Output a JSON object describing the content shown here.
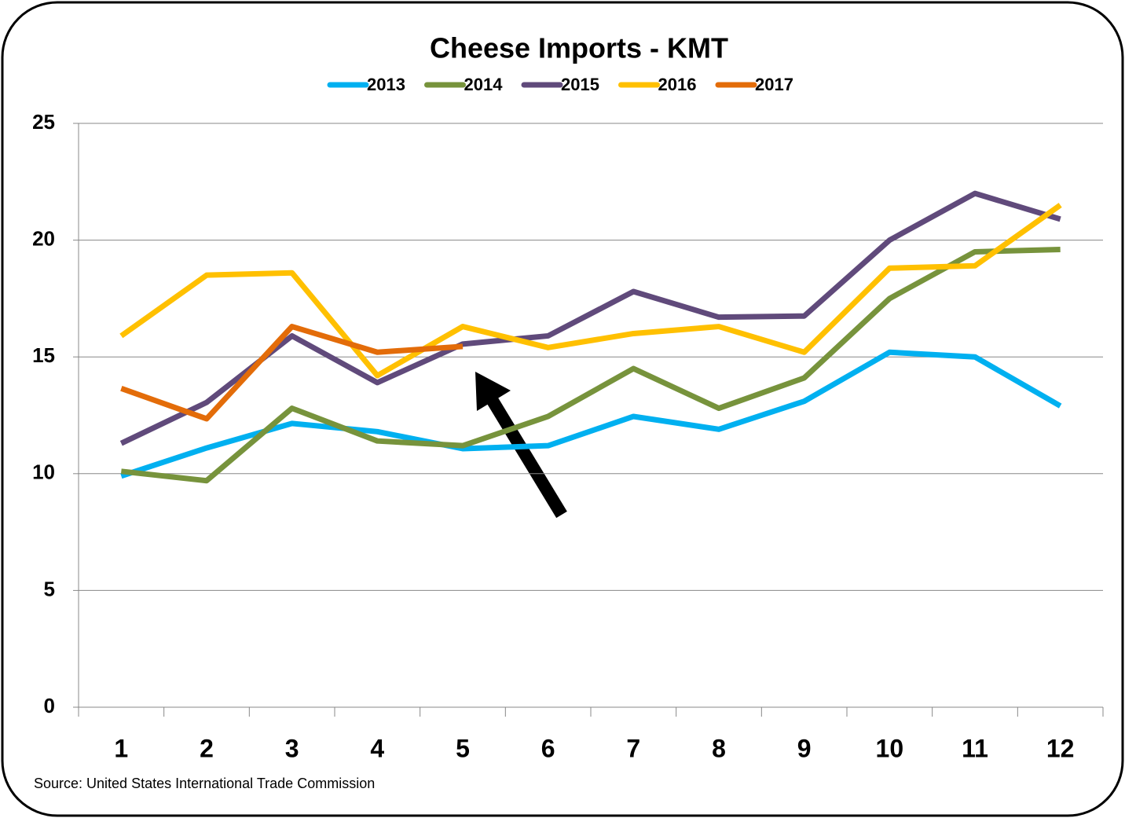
{
  "chart_data": {
    "type": "line",
    "title": "Cheese Imports - KMT",
    "categories": [
      1,
      2,
      3,
      4,
      5,
      6,
      7,
      8,
      9,
      10,
      11,
      12
    ],
    "series": [
      {
        "name": "2013",
        "color": "#00b0f0",
        "values": [
          9.9,
          11.1,
          12.15,
          11.8,
          11.07,
          11.2,
          12.45,
          11.9,
          13.1,
          15.2,
          15.0,
          12.9
        ]
      },
      {
        "name": "2014",
        "color": "#77933c",
        "values": [
          10.1,
          9.7,
          12.8,
          11.4,
          11.2,
          12.45,
          14.5,
          12.8,
          14.1,
          17.5,
          19.5,
          19.6
        ]
      },
      {
        "name": "2015",
        "color": "#604a7b",
        "values": [
          11.3,
          13.05,
          15.9,
          13.9,
          15.55,
          15.9,
          17.8,
          16.7,
          16.75,
          20.0,
          22.0,
          20.9
        ]
      },
      {
        "name": "2016",
        "color": "#ffc000",
        "values": [
          15.9,
          18.5,
          18.6,
          14.2,
          16.3,
          15.4,
          16.0,
          16.3,
          15.2,
          18.8,
          18.9,
          21.5
        ]
      },
      {
        "name": "2017",
        "color": "#e36c09",
        "values": [
          13.65,
          12.35,
          16.3,
          15.2,
          15.45,
          null,
          null,
          null,
          null,
          null,
          null,
          null
        ]
      }
    ],
    "ylim": [
      0,
      25
    ],
    "yticks": [
      0,
      5,
      10,
      15,
      20,
      25
    ],
    "grid": true,
    "legend": "top",
    "source": "Source: United States International Trade Commission"
  }
}
